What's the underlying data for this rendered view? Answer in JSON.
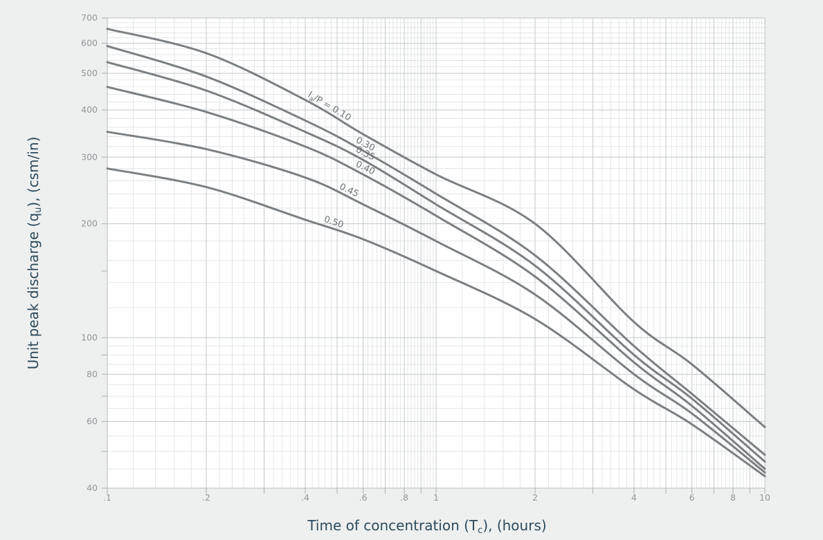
{
  "chart_data": {
    "type": "line",
    "x_scale": "log",
    "y_scale": "log",
    "xlim": [
      0.1,
      10
    ],
    "ylim": [
      40,
      700
    ],
    "grid": true,
    "xlabel_parts": [
      "Time of concentration (T",
      "c",
      "), (hours)"
    ],
    "ylabel_parts": [
      "Unit peak discharge (q",
      "u",
      "), (csm/in)"
    ],
    "x_ticks": [
      {
        "value": 0.1,
        "label": ".1"
      },
      {
        "value": 0.2,
        "label": ".2"
      },
      {
        "value": 0.4,
        "label": ".4"
      },
      {
        "value": 0.6,
        "label": ".6"
      },
      {
        "value": 0.8,
        "label": ".8"
      },
      {
        "value": 1,
        "label": "1"
      },
      {
        "value": 2,
        "label": "2"
      },
      {
        "value": 4,
        "label": "4"
      },
      {
        "value": 6,
        "label": "6"
      },
      {
        "value": 8,
        "label": "8"
      },
      {
        "value": 10,
        "label": "10"
      }
    ],
    "y_ticks": [
      {
        "value": 40,
        "label": "40"
      },
      {
        "value": 60,
        "label": "60"
      },
      {
        "value": 80,
        "label": "80"
      },
      {
        "value": 100,
        "label": "100"
      },
      {
        "value": 200,
        "label": "200"
      },
      {
        "value": 300,
        "label": "300"
      },
      {
        "value": 400,
        "label": "400"
      },
      {
        "value": 500,
        "label": "500"
      },
      {
        "value": 600,
        "label": "600"
      },
      {
        "value": 700,
        "label": "700"
      }
    ],
    "series": [
      {
        "label": "Ia/P = 0.10",
        "x": [
          0.1,
          0.2,
          0.4,
          0.6,
          1,
          2,
          4,
          6,
          10
        ],
        "y": [
          655,
          565,
          425,
          345,
          270,
          200,
          110,
          85,
          58
        ]
      },
      {
        "label": "0.30",
        "x": [
          0.1,
          0.2,
          0.4,
          0.6,
          1,
          2,
          4,
          6,
          10
        ],
        "y": [
          590,
          490,
          375,
          312,
          240,
          165,
          95,
          71,
          49
        ]
      },
      {
        "label": "0.35",
        "x": [
          0.1,
          0.2,
          0.4,
          0.6,
          1,
          2,
          4,
          6,
          10
        ],
        "y": [
          535,
          450,
          350,
          295,
          225,
          155,
          90,
          69,
          47
        ]
      },
      {
        "label": "0.40",
        "x": [
          0.1,
          0.2,
          0.4,
          0.6,
          1,
          2,
          4,
          6,
          10
        ],
        "y": [
          460,
          395,
          320,
          270,
          210,
          145,
          86,
          66,
          45
        ]
      },
      {
        "label": "0.45",
        "x": [
          0.1,
          0.2,
          0.4,
          0.6,
          1,
          2,
          4,
          6,
          10
        ],
        "y": [
          350,
          315,
          265,
          225,
          180,
          130,
          80,
          63,
          44
        ]
      },
      {
        "label": "0.50",
        "x": [
          0.1,
          0.2,
          0.4,
          0.6,
          1,
          2,
          4,
          6,
          10
        ],
        "y": [
          280,
          250,
          205,
          182,
          150,
          112,
          73,
          59,
          43
        ]
      }
    ],
    "curve_labels": [
      {
        "series": 0,
        "prefix": "I",
        "subscript": "a",
        "suffix": "/P = 0.10",
        "x": 0.4
      },
      {
        "series": 1,
        "text": "0.30",
        "x": 0.56
      },
      {
        "series": 2,
        "text": "0.35",
        "x": 0.56
      },
      {
        "series": 3,
        "text": "0.40",
        "x": 0.56
      },
      {
        "series": 4,
        "text": "0.45",
        "x": 0.5
      },
      {
        "series": 5,
        "text": "0.50",
        "x": 0.45
      }
    ],
    "colors": {
      "background": "#eef0ef",
      "plot_background": "#ffffff",
      "grid": "#d3d6d7",
      "curve": "#7b7f82",
      "tick_label": "#8f9698",
      "axis_title": "#2c4a5c"
    }
  }
}
